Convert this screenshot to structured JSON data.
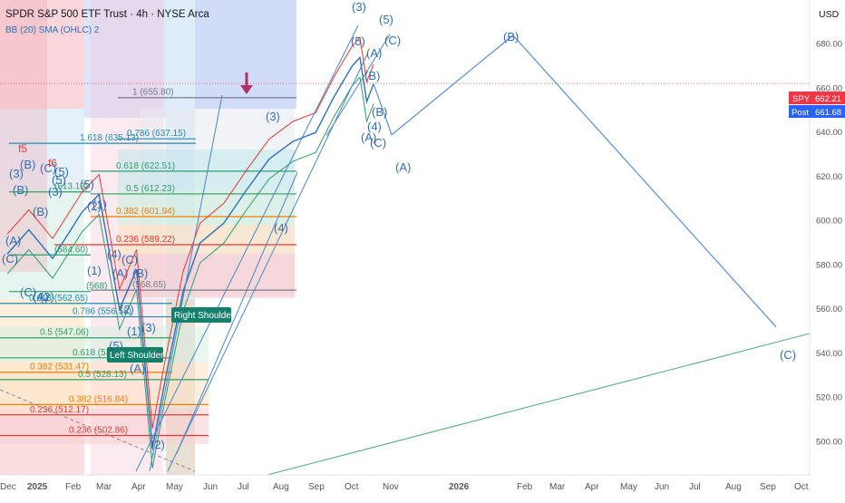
{
  "header": {
    "title": "SPDR S&P 500 ETF Trust · 4h · NYSE Arca",
    "indicator": "BB (20) SMA (OHLC) 2",
    "currency": "USD"
  },
  "price_tags": {
    "symbol": "SPY",
    "symbol_price": "662.21",
    "post": "Post",
    "post_price": "661.68"
  },
  "labels": {
    "left_shoulder": "Left Shoulder",
    "right_shoulder": "Right Shoulder",
    "f5": "f5",
    "f6": "f6"
  },
  "colors": {
    "wave": "#2f6fb5",
    "projection": "#5b8fd1",
    "trendline": "#4caf74",
    "shoulder": "#14806b",
    "price_tag_red": "#f23645",
    "price_tag_blue": "#2962ff",
    "fib_red": "#e53935",
    "fib_orange": "#f57c00",
    "fib_green": "#2e9e6a",
    "fib_teal": "#1c8fb0",
    "fib_gray": "#787b86"
  },
  "chart_data": {
    "type": "line",
    "ylim": [
      485,
      700
    ],
    "y_ticks": [
      500,
      520,
      540,
      560,
      580,
      600,
      620,
      640,
      660,
      680
    ],
    "x_ticks": [
      "Dec",
      "2025",
      "Feb",
      "Mar",
      "Apr",
      "May",
      "Jun",
      "Jul",
      "Aug",
      "Sep",
      "Oct",
      "Nov",
      "2026",
      "Feb",
      "Mar",
      "Apr",
      "May",
      "Jun",
      "Jul",
      "Aug",
      "Sep",
      "Oct"
    ],
    "price_path": {
      "x": [
        "2024-12-01",
        "2024-12-20",
        "2025-01-10",
        "2025-02-05",
        "2025-02-20",
        "2025-03-10",
        "2025-03-25",
        "2025-04-08",
        "2025-04-20",
        "2025-05-05",
        "2025-05-20",
        "2025-06-10",
        "2025-06-30",
        "2025-07-20",
        "2025-08-10",
        "2025-08-30",
        "2025-09-15",
        "2025-10-01",
        "2025-10-08",
        "2025-10-14",
        "2025-10-20"
      ],
      "y": [
        585,
        596,
        583,
        604,
        612,
        560,
        578,
        497,
        530,
        568,
        590,
        599,
        614,
        628,
        636,
        640,
        656,
        670,
        674,
        654,
        662
      ]
    },
    "projection": {
      "x": [
        "2025-10-20",
        "2025-11-05",
        "2026-02-20",
        "2026-10-10"
      ],
      "y": [
        662,
        639,
        684,
        552
      ]
    },
    "fib_levels": [
      {
        "label": "1 (655.80)",
        "value": 655.8,
        "color": "#787b86"
      },
      {
        "label": "0.786 (637.15)",
        "value": 637.15,
        "color": "#1c8fb0"
      },
      {
        "label": "1.618 (635.13)",
        "value": 635.13,
        "color": "#1c8fb0"
      },
      {
        "label": "0.618 (622.51)",
        "value": 622.51,
        "color": "#2e9e6a"
      },
      {
        "label": "(613.13)",
        "value": 613.13,
        "color": "#2e9e6a"
      },
      {
        "label": "0.5 (612.23)",
        "value": 612.23,
        "color": "#2e9e6a"
      },
      {
        "label": "0.382 (601.94)",
        "value": 601.94,
        "color": "#f57c00"
      },
      {
        "label": "0.236 (589.22)",
        "value": 589.22,
        "color": "#e53935"
      },
      {
        "label": "(584.60)",
        "value": 584.6,
        "color": "#2e9e6a"
      },
      {
        "label": "(568.65)",
        "value": 568.65,
        "color": "#787b86"
      },
      {
        "label": "(568)",
        "value": 568,
        "color": "#2e9e6a"
      },
      {
        "label": "0.618 (562.65)",
        "value": 562.65,
        "color": "#1c8fb0"
      },
      {
        "label": "0.786 (556.58)",
        "value": 556.58,
        "color": "#1c8fb0"
      },
      {
        "label": "0.5 (547.06)",
        "value": 547.06,
        "color": "#2e9e6a"
      },
      {
        "label": "0.618 (538)",
        "value": 538,
        "color": "#2e9e6a"
      },
      {
        "label": "0.382 (531.47)",
        "value": 531.47,
        "color": "#f57c00"
      },
      {
        "label": "0.5 (528.13)",
        "value": 528.13,
        "color": "#2e9e6a"
      },
      {
        "label": "0.382 (516.84)",
        "value": 516.84,
        "color": "#f57c00"
      },
      {
        "label": "0.236 (512.17)",
        "value": 512.17,
        "color": "#e53935"
      },
      {
        "label": "0.236 (502.86)",
        "value": 502.86,
        "color": "#e53935"
      }
    ],
    "wave_labels": [
      "(3)",
      "(5)",
      "(5)",
      "(A)",
      "(C)",
      "(B)",
      "(B)",
      "(4)",
      "(A)",
      "(C)",
      "(3)",
      "(B)",
      "(A)",
      "(4)",
      "(C)",
      "(5)",
      "(2)",
      "(5)",
      "(3)",
      "(B)",
      "(B)",
      "(1)",
      "(4)",
      "(C)",
      "(A)",
      "(B)",
      "(C)",
      "(A)",
      "(2)",
      "(5)",
      "(1)",
      "(3)",
      "(A)",
      "(2)",
      "(3)",
      "(A)",
      "(C)",
      "(B)",
      "(C)",
      "(5)",
      "(1)",
      "(2)"
    ]
  }
}
